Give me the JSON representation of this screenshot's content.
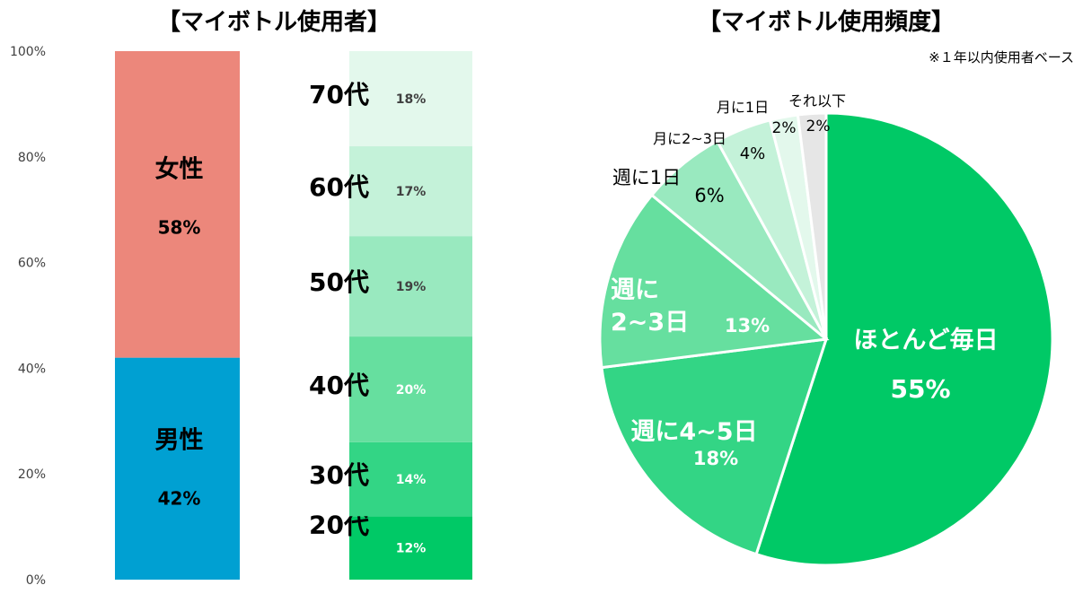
{
  "chart_data": [
    {
      "type": "bar",
      "subtype": "stacked-100",
      "title": "【マイボトル使用者】",
      "y_ticks": [
        "0%",
        "20%",
        "40%",
        "60%",
        "80%",
        "100%"
      ],
      "ylim": [
        0,
        100
      ],
      "series_gender": [
        {
          "name": "男性",
          "value": 42,
          "label": "42%",
          "color": "#00a0d2"
        },
        {
          "name": "女性",
          "value": 58,
          "label": "58%",
          "color": "#ec877b"
        }
      ],
      "series_age": [
        {
          "name": "20代",
          "value": 12,
          "label": "12%",
          "color": "#00c966"
        },
        {
          "name": "30代",
          "value": 14,
          "label": "14%",
          "color": "#33d585"
        },
        {
          "name": "40代",
          "value": 20,
          "label": "20%",
          "color": "#66df9f"
        },
        {
          "name": "50代",
          "value": 19,
          "label": "19%",
          "color": "#99e9bf"
        },
        {
          "name": "60代",
          "value": 17,
          "label": "17%",
          "color": "#c4f2d9"
        },
        {
          "name": "70代",
          "value": 18,
          "label": "18%",
          "color": "#e3f8ec"
        }
      ]
    },
    {
      "type": "pie",
      "title": "【マイボトル使用頻度】",
      "note": "※１年以内使用者ベース",
      "slices": [
        {
          "name": "ほとんど毎日",
          "value": 55,
          "label": "55%",
          "color": "#00c966"
        },
        {
          "name": "週に4~5日",
          "value": 18,
          "label": "18%",
          "color": "#33d585"
        },
        {
          "name_lines": [
            "週に",
            "2~3日"
          ],
          "name": "週に2~3日",
          "value": 13,
          "label": "13%",
          "color": "#66df9f"
        },
        {
          "name": "週に1日",
          "value": 6,
          "label": "6%",
          "color": "#99e9bf"
        },
        {
          "name": "月に2~3日",
          "value": 4,
          "label": "4%",
          "color": "#c4f2d9"
        },
        {
          "name": "月に1日",
          "value": 2,
          "label": "2%",
          "color": "#e3f8ec"
        },
        {
          "name": "それ以下",
          "value": 2,
          "label": "2%",
          "color": "#e6e6e6"
        }
      ]
    }
  ]
}
